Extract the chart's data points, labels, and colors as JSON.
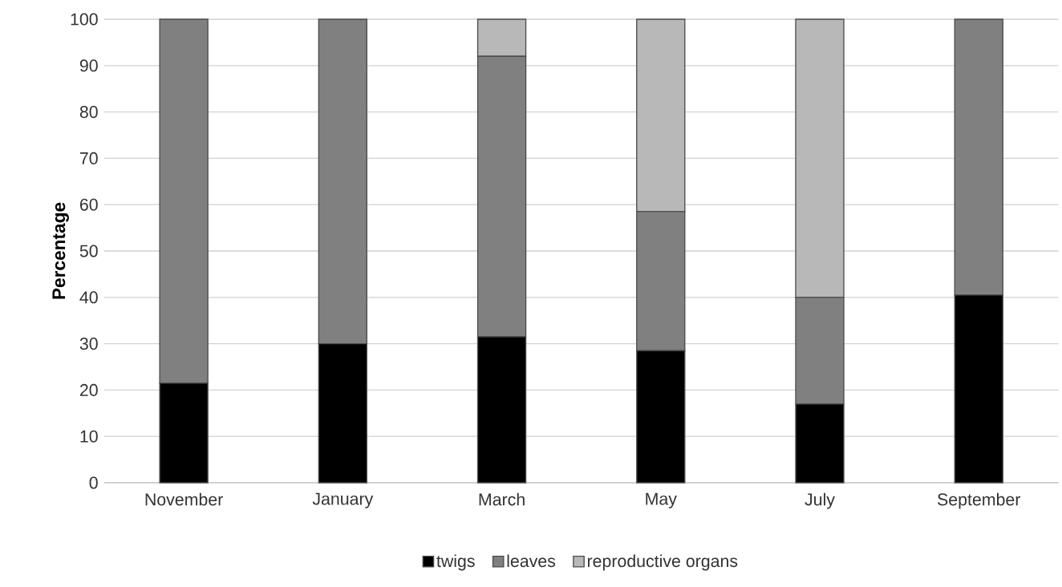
{
  "chart_data": {
    "type": "bar",
    "stacked": true,
    "ylabel": "Percentage",
    "categories": [
      "November",
      "January",
      "March",
      "May",
      "July",
      "September"
    ],
    "series": [
      {
        "name": "twigs",
        "color": "#000000",
        "values": [
          21.5,
          30,
          31.5,
          28.5,
          17,
          40.5
        ]
      },
      {
        "name": "leaves",
        "color": "#808080",
        "values": [
          78.5,
          70,
          60.5,
          30,
          23,
          59.5
        ]
      },
      {
        "name": "reproductive organs",
        "color": "#b8b8b8",
        "values": [
          null,
          null,
          8,
          41.5,
          60,
          null
        ]
      }
    ],
    "ylim": [
      0,
      100
    ],
    "yticks": [
      0,
      10,
      20,
      30,
      40,
      50,
      60,
      70,
      80,
      90,
      100
    ],
    "grid": "y",
    "legend": "bottom"
  }
}
